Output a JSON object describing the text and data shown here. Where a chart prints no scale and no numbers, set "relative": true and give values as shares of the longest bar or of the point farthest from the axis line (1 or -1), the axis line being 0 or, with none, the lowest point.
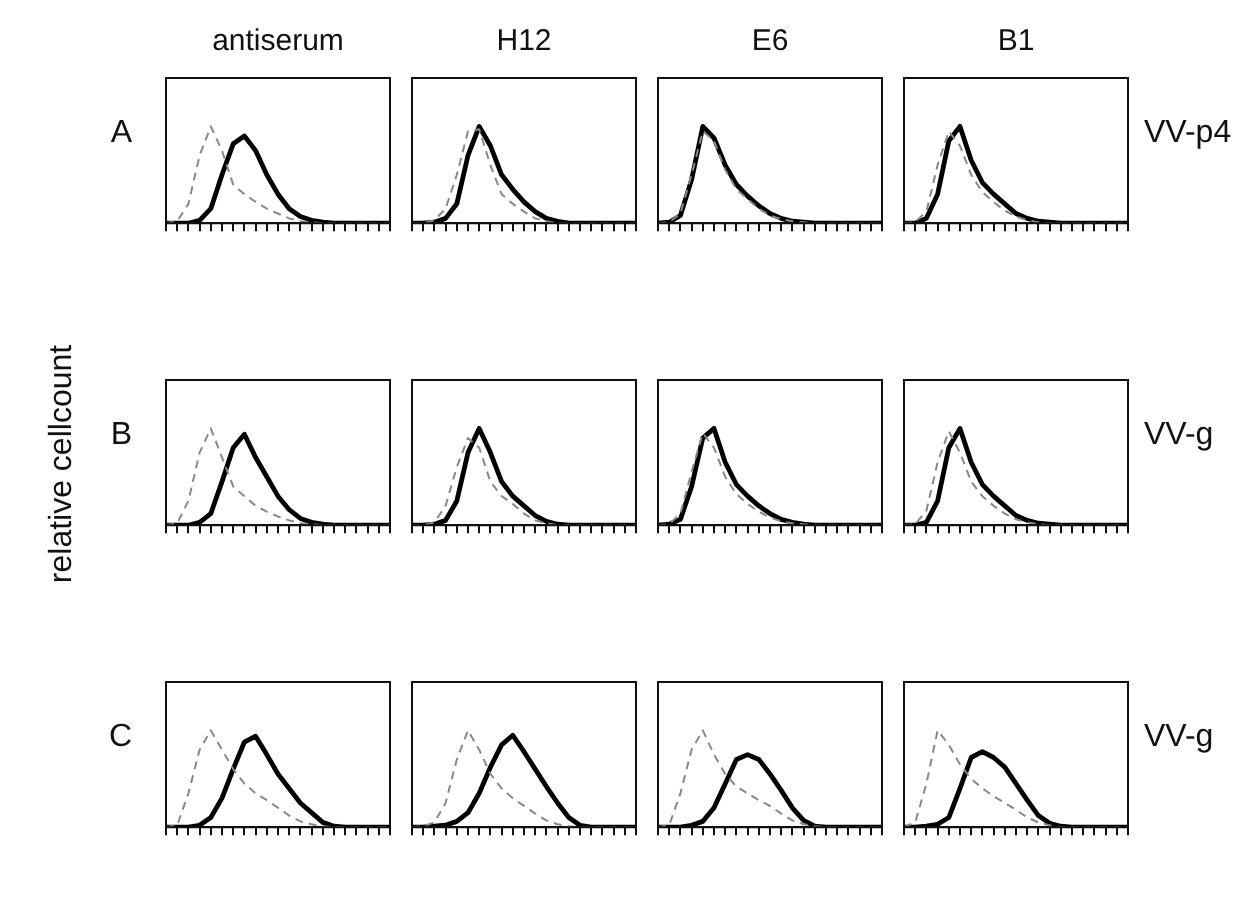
{
  "chart_data": [
    {
      "type": "line",
      "title": "antiserum",
      "relative": true,
      "marker": "none",
      "annotations": [
        "A"
      ],
      "categories": [
        null,
        null,
        null,
        null,
        null,
        null,
        null,
        null,
        null,
        null,
        null,
        null,
        null,
        null,
        null,
        null,
        null,
        null,
        null,
        null,
        null
      ],
      "series": [
        {
          "color": "#888888",
          "line_style": "dashed",
          "values": [
            0,
            0.02,
            0.2,
            0.7,
            1,
            0.75,
            0.4,
            0.3,
            0.22,
            0.15,
            0.1,
            0.05,
            0.02,
            0.01,
            0,
            0,
            0,
            0,
            0,
            0,
            0
          ]
        },
        {
          "color": "#000000",
          "line_style": "solid",
          "values": [
            0,
            0,
            0,
            0.03,
            0.15,
            0.5,
            0.82,
            0.9,
            0.75,
            0.5,
            0.3,
            0.15,
            0.07,
            0.03,
            0.01,
            0,
            0,
            0,
            0,
            0,
            0
          ]
        }
      ]
    },
    {
      "type": "line",
      "title": "H12",
      "relative": true,
      "marker": "none",
      "categories": [
        null,
        null,
        null,
        null,
        null,
        null,
        null,
        null,
        null,
        null,
        null,
        null,
        null,
        null,
        null,
        null,
        null,
        null,
        null,
        null,
        null
      ],
      "series": [
        {
          "color": "#888888",
          "line_style": "dashed",
          "values": [
            0,
            0,
            0.03,
            0.15,
            0.5,
            0.95,
            0.97,
            0.6,
            0.3,
            0.2,
            0.12,
            0.05,
            0.02,
            0,
            0,
            0,
            0,
            0,
            0,
            0,
            0
          ]
        },
        {
          "color": "#000000",
          "line_style": "solid",
          "values": [
            0,
            0,
            0.01,
            0.05,
            0.2,
            0.7,
            1,
            0.8,
            0.5,
            0.35,
            0.22,
            0.12,
            0.05,
            0.02,
            0,
            0,
            0,
            0,
            0,
            0,
            0
          ]
        }
      ]
    },
    {
      "type": "line",
      "title": "E6",
      "relative": true,
      "marker": "none",
      "categories": [
        null,
        null,
        null,
        null,
        null,
        null,
        null,
        null,
        null,
        null,
        null,
        null,
        null,
        null,
        null,
        null,
        null,
        null,
        null,
        null,
        null
      ],
      "series": [
        {
          "color": "#888888",
          "line_style": "dashed",
          "values": [
            0,
            0.01,
            0.1,
            0.5,
            0.95,
            0.85,
            0.55,
            0.35,
            0.25,
            0.15,
            0.08,
            0.04,
            0.02,
            0.01,
            0,
            0,
            0,
            0,
            0,
            0,
            0
          ]
        },
        {
          "color": "#000000",
          "line_style": "solid",
          "values": [
            0,
            0.01,
            0.08,
            0.45,
            1,
            0.88,
            0.6,
            0.4,
            0.28,
            0.18,
            0.1,
            0.05,
            0.02,
            0.01,
            0,
            0,
            0,
            0,
            0,
            0,
            0
          ]
        }
      ]
    },
    {
      "type": "line",
      "title": "B1",
      "relative": true,
      "marker": "none",
      "annotations": [
        "VV-p4"
      ],
      "categories": [
        null,
        null,
        null,
        null,
        null,
        null,
        null,
        null,
        null,
        null,
        null,
        null,
        null,
        null,
        null,
        null,
        null,
        null,
        null,
        null,
        null
      ],
      "series": [
        {
          "color": "#888888",
          "line_style": "dashed",
          "values": [
            0,
            0.01,
            0.12,
            0.6,
            0.95,
            0.8,
            0.5,
            0.32,
            0.22,
            0.13,
            0.07,
            0.03,
            0.01,
            0,
            0,
            0,
            0,
            0,
            0,
            0,
            0
          ]
        },
        {
          "color": "#000000",
          "line_style": "solid",
          "values": [
            0,
            0,
            0.05,
            0.3,
            0.85,
            1,
            0.65,
            0.42,
            0.3,
            0.2,
            0.1,
            0.05,
            0.02,
            0.01,
            0,
            0,
            0,
            0,
            0,
            0,
            0
          ]
        }
      ]
    },
    {
      "type": "line",
      "ylabel": "relative cellcount",
      "relative": true,
      "marker": "none",
      "annotations": [
        "B"
      ],
      "categories": [
        null,
        null,
        null,
        null,
        null,
        null,
        null,
        null,
        null,
        null,
        null,
        null,
        null,
        null,
        null,
        null,
        null,
        null,
        null,
        null,
        null
      ],
      "series": [
        {
          "color": "#888888",
          "line_style": "dashed",
          "values": [
            0,
            0.02,
            0.25,
            0.75,
            1,
            0.7,
            0.4,
            0.3,
            0.2,
            0.14,
            0.09,
            0.05,
            0.02,
            0.01,
            0,
            0,
            0,
            0,
            0,
            0,
            0
          ]
        },
        {
          "color": "#000000",
          "line_style": "solid",
          "values": [
            0,
            0,
            0,
            0.03,
            0.12,
            0.45,
            0.8,
            0.94,
            0.7,
            0.5,
            0.3,
            0.16,
            0.07,
            0.03,
            0.01,
            0,
            0,
            0,
            0,
            0,
            0
          ]
        }
      ]
    },
    {
      "type": "line",
      "relative": true,
      "marker": "none",
      "categories": [
        null,
        null,
        null,
        null,
        null,
        null,
        null,
        null,
        null,
        null,
        null,
        null,
        null,
        null,
        null,
        null,
        null,
        null,
        null,
        null,
        null
      ],
      "series": [
        {
          "color": "#888888",
          "line_style": "dashed",
          "values": [
            0,
            0,
            0.03,
            0.2,
            0.6,
            0.9,
            0.8,
            0.45,
            0.3,
            0.22,
            0.12,
            0.05,
            0.02,
            0,
            0,
            0,
            0,
            0,
            0,
            0,
            0
          ]
        },
        {
          "color": "#000000",
          "line_style": "solid",
          "values": [
            0,
            0,
            0.01,
            0.05,
            0.25,
            0.75,
            1,
            0.75,
            0.45,
            0.3,
            0.2,
            0.1,
            0.04,
            0.01,
            0,
            0,
            0,
            0,
            0,
            0,
            0
          ]
        }
      ]
    },
    {
      "type": "line",
      "relative": true,
      "marker": "none",
      "categories": [
        null,
        null,
        null,
        null,
        null,
        null,
        null,
        null,
        null,
        null,
        null,
        null,
        null,
        null,
        null,
        null,
        null,
        null,
        null,
        null,
        null
      ],
      "series": [
        {
          "color": "#888888",
          "line_style": "dashed",
          "values": [
            0,
            0.01,
            0.12,
            0.55,
            0.95,
            0.8,
            0.5,
            0.32,
            0.22,
            0.14,
            0.08,
            0.04,
            0.02,
            0.01,
            0,
            0,
            0,
            0,
            0,
            0,
            0
          ]
        },
        {
          "color": "#000000",
          "line_style": "solid",
          "values": [
            0,
            0.01,
            0.06,
            0.4,
            0.9,
            1,
            0.65,
            0.42,
            0.3,
            0.2,
            0.12,
            0.06,
            0.03,
            0.01,
            0,
            0,
            0,
            0,
            0,
            0,
            0
          ]
        }
      ]
    },
    {
      "type": "line",
      "relative": true,
      "marker": "none",
      "annotations": [
        "VV-g"
      ],
      "categories": [
        null,
        null,
        null,
        null,
        null,
        null,
        null,
        null,
        null,
        null,
        null,
        null,
        null,
        null,
        null,
        null,
        null,
        null,
        null,
        null,
        null
      ],
      "series": [
        {
          "color": "#888888",
          "line_style": "dashed",
          "values": [
            0,
            0.01,
            0.15,
            0.65,
            0.97,
            0.75,
            0.45,
            0.3,
            0.2,
            0.12,
            0.06,
            0.03,
            0.01,
            0,
            0,
            0,
            0,
            0,
            0,
            0,
            0
          ]
        },
        {
          "color": "#000000",
          "line_style": "solid",
          "values": [
            0,
            0,
            0.03,
            0.25,
            0.8,
            1,
            0.65,
            0.42,
            0.3,
            0.2,
            0.1,
            0.05,
            0.02,
            0.01,
            0,
            0,
            0,
            0,
            0,
            0,
            0
          ]
        }
      ]
    },
    {
      "type": "line",
      "relative": true,
      "marker": "none",
      "annotations": [
        "C"
      ],
      "categories": [
        null,
        null,
        null,
        null,
        null,
        null,
        null,
        null,
        null,
        null,
        null,
        null,
        null,
        null,
        null,
        null,
        null,
        null,
        null,
        null,
        null
      ],
      "series": [
        {
          "color": "#888888",
          "line_style": "dashed",
          "values": [
            0,
            0.02,
            0.35,
            0.8,
            1,
            0.8,
            0.6,
            0.45,
            0.35,
            0.28,
            0.2,
            0.12,
            0.06,
            0.03,
            0.01,
            0,
            0,
            0,
            0,
            0,
            0
          ]
        },
        {
          "color": "#000000",
          "line_style": "solid",
          "values": [
            0,
            0,
            0,
            0.02,
            0.1,
            0.3,
            0.6,
            0.88,
            0.94,
            0.75,
            0.55,
            0.4,
            0.25,
            0.15,
            0.05,
            0.01,
            0,
            0,
            0,
            0,
            0
          ]
        }
      ]
    },
    {
      "type": "line",
      "relative": true,
      "marker": "none",
      "categories": [
        null,
        null,
        null,
        null,
        null,
        null,
        null,
        null,
        null,
        null,
        null,
        null,
        null,
        null,
        null,
        null,
        null,
        null,
        null,
        null,
        null
      ],
      "series": [
        {
          "color": "#888888",
          "line_style": "dashed",
          "values": [
            0,
            0.01,
            0.05,
            0.25,
            0.7,
            1,
            0.8,
            0.55,
            0.4,
            0.3,
            0.22,
            0.14,
            0.07,
            0.03,
            0.01,
            0,
            0,
            0,
            0,
            0,
            0
          ]
        },
        {
          "color": "#000000",
          "line_style": "solid",
          "values": [
            0,
            0,
            0.01,
            0.02,
            0.06,
            0.15,
            0.35,
            0.62,
            0.85,
            0.95,
            0.78,
            0.6,
            0.42,
            0.25,
            0.1,
            0.02,
            0,
            0,
            0,
            0,
            0
          ]
        }
      ]
    },
    {
      "type": "line",
      "relative": true,
      "marker": "none",
      "categories": [
        null,
        null,
        null,
        null,
        null,
        null,
        null,
        null,
        null,
        null,
        null,
        null,
        null,
        null,
        null,
        null,
        null,
        null,
        null,
        null,
        null
      ],
      "series": [
        {
          "color": "#888888",
          "line_style": "dashed",
          "values": [
            0,
            0.02,
            0.35,
            0.8,
            1,
            0.75,
            0.55,
            0.42,
            0.35,
            0.28,
            0.22,
            0.14,
            0.07,
            0.03,
            0.01,
            0,
            0,
            0,
            0,
            0,
            0
          ]
        },
        {
          "color": "#000000",
          "line_style": "solid",
          "values": [
            0,
            0,
            0,
            0.02,
            0.06,
            0.2,
            0.45,
            0.7,
            0.75,
            0.7,
            0.55,
            0.38,
            0.2,
            0.07,
            0.01,
            0,
            0,
            0,
            0,
            0,
            0
          ]
        }
      ]
    },
    {
      "type": "line",
      "relative": true,
      "marker": "none",
      "annotations": [
        "VV-g"
      ],
      "categories": [
        null,
        null,
        null,
        null,
        null,
        null,
        null,
        null,
        null,
        null,
        null,
        null,
        null,
        null,
        null,
        null,
        null,
        null,
        null,
        null,
        null
      ],
      "series": [
        {
          "color": "#888888",
          "line_style": "dashed",
          "values": [
            0,
            0.05,
            0.45,
            1,
            0.85,
            0.65,
            0.5,
            0.4,
            0.32,
            0.25,
            0.18,
            0.1,
            0.05,
            0.02,
            0,
            0,
            0,
            0,
            0,
            0,
            0
          ]
        },
        {
          "color": "#000000",
          "line_style": "solid",
          "values": [
            0,
            0,
            0.01,
            0.03,
            0.1,
            0.4,
            0.72,
            0.78,
            0.72,
            0.62,
            0.45,
            0.28,
            0.12,
            0.04,
            0.01,
            0,
            0,
            0,
            0,
            0,
            0
          ]
        }
      ]
    }
  ]
}
